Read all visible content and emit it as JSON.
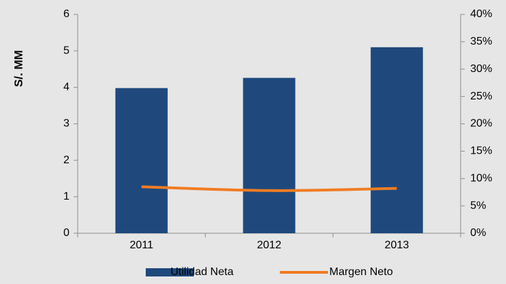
{
  "chart_data": {
    "type": "bar_line",
    "y_label": "S/. MM",
    "categories": [
      "2011",
      "2012",
      "2013"
    ],
    "series": [
      {
        "name": "Utilidad Neta",
        "color": "#1f497d",
        "values": [
          3.98,
          4.26,
          5.1
        ]
      },
      {
        "name": "Margen Neto",
        "color": "#f07c22",
        "values": [
          8.5,
          7.8,
          8.2
        ],
        "axis": "y2"
      }
    ],
    "ylim": [
      0,
      6
    ],
    "yticks": [
      0,
      1,
      2,
      3,
      4,
      5,
      6
    ],
    "y2lim": [
      0,
      40
    ],
    "y2ticks": [
      {
        "value": 0,
        "label": "0%"
      },
      {
        "value": 5,
        "label": "5%"
      },
      {
        "value": 10,
        "label": "10%"
      },
      {
        "value": 15,
        "label": "15%"
      },
      {
        "value": 20,
        "label": "20%"
      },
      {
        "value": 25,
        "label": "25%"
      },
      {
        "value": 30,
        "label": "30%"
      },
      {
        "value": 35,
        "label": "35%"
      },
      {
        "value": 40,
        "label": "40%"
      }
    ]
  }
}
